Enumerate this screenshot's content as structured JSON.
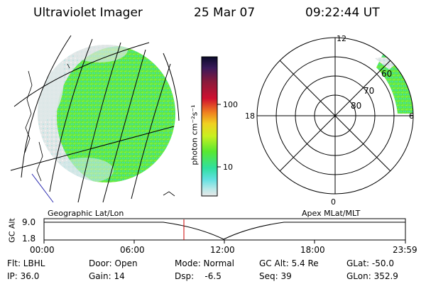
{
  "header": {
    "title": "Ultraviolet Imager",
    "date": "25 Mar 07",
    "time": "09:22:44 UT"
  },
  "colorbar": {
    "unit_label": "photon cm⁻²s⁻¹",
    "ticks": [
      "100",
      "10"
    ],
    "colors": [
      "#0a0a2a",
      "#3a1a5a",
      "#8a1a3a",
      "#d01030",
      "#f08020",
      "#f0d020",
      "#c8f020",
      "#58e830",
      "#30e0a0",
      "#60e0e0",
      "#b8e8e8",
      "#e0e0e0"
    ]
  },
  "polar_plot": {
    "labels": {
      "top": "12",
      "left": "18",
      "right": "6",
      "bottom": "0"
    },
    "ring_labels": [
      "60",
      "70",
      "80"
    ]
  },
  "orbit_panel": {
    "left_title": "Geographic Lat/Lon",
    "right_title": "Apex MLat/MLT",
    "y_axis_label": "GC Alt",
    "y_ticks": [
      "9.0",
      "1.8"
    ],
    "x_ticks": [
      "00:00",
      "06:00",
      "12:00",
      "18:00",
      "23:59"
    ],
    "current_time_marker_color": "#cc0000"
  },
  "info": {
    "flt": "Flt: LBHL",
    "ip": "IP: 36.0",
    "door": "Door: Open",
    "gain": "Gain: 14",
    "mode": "Mode: Normal",
    "dsp": "Dsp:    -6.5",
    "gcalt": "GC Alt: 5.4 Re",
    "seq": "Seq: 39",
    "glat": "GLat: -50.0",
    "glon": "GLon: 352.9"
  }
}
